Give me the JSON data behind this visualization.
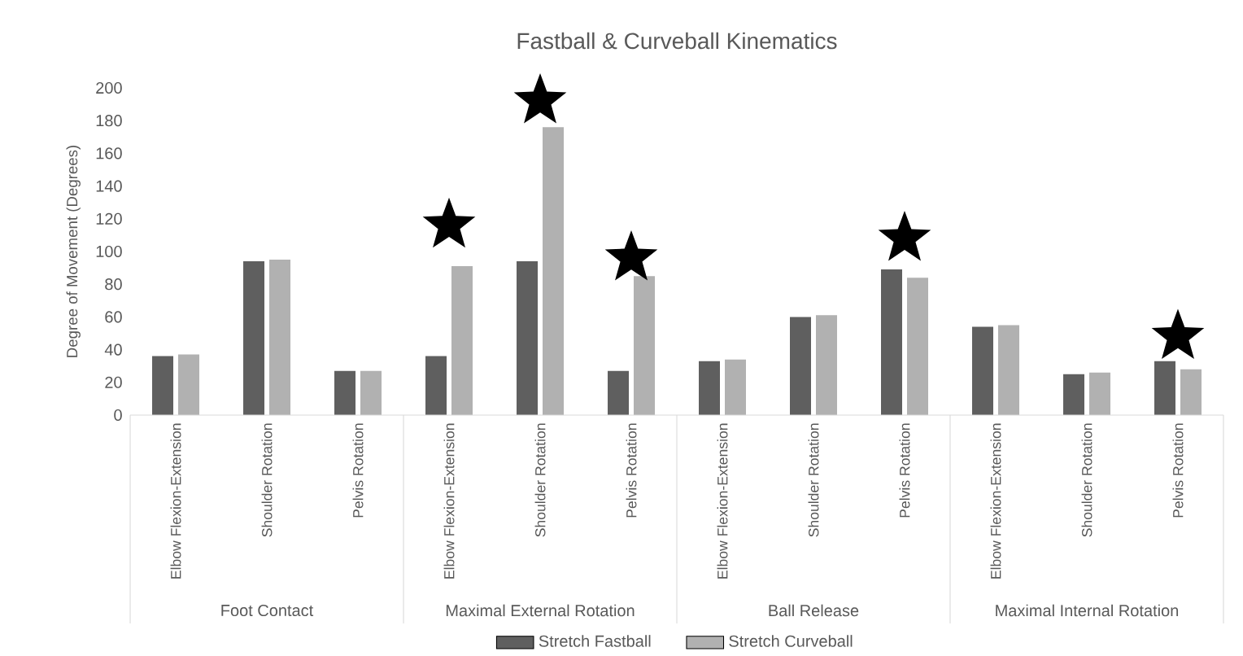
{
  "chart_data": {
    "type": "bar",
    "title": "Fastball & Curveball Kinematics",
    "ylabel": "Degree of Movement (Degrees)",
    "categories": [
      "Elbow Flexion-Extension",
      "Shoulder Rotation",
      "Pelvis Rotation",
      "Elbow Flexion-Extension",
      "Shoulder Rotation",
      "Pelvis Rotation",
      "Elbow Flexion-Extension",
      "Shoulder Rotation",
      "Pelvis Rotation",
      "Elbow Flexion-Extension",
      "Shoulder Rotation",
      "Pelvis Rotation"
    ],
    "series": [
      {
        "name": "Stretch Fastball",
        "color": "#5f5f5f",
        "values": [
          36,
          94,
          27,
          36,
          94,
          27,
          33,
          60,
          89,
          54,
          25,
          33
        ]
      },
      {
        "name": "Stretch Curveball",
        "color": "#b1b1b1",
        "values": [
          37,
          95,
          27,
          91,
          176,
          85,
          34,
          61,
          84,
          55,
          26,
          28
        ]
      },
      {
        "type": "scatter",
        "marker": "star",
        "color": "#000000",
        "values": [
          null,
          null,
          null,
          116,
          192,
          96,
          null,
          null,
          108,
          null,
          null,
          48
        ]
      }
    ],
    "annotations": [
      "Foot Contact",
      "Maximal External Rotation",
      "Ball Release",
      "Maximal Internal Rotation"
    ],
    "ylim": [
      0,
      200
    ],
    "yticks": [
      0,
      20,
      40,
      60,
      80,
      100,
      120,
      140,
      160,
      180,
      200
    ],
    "legend": "bottom"
  }
}
